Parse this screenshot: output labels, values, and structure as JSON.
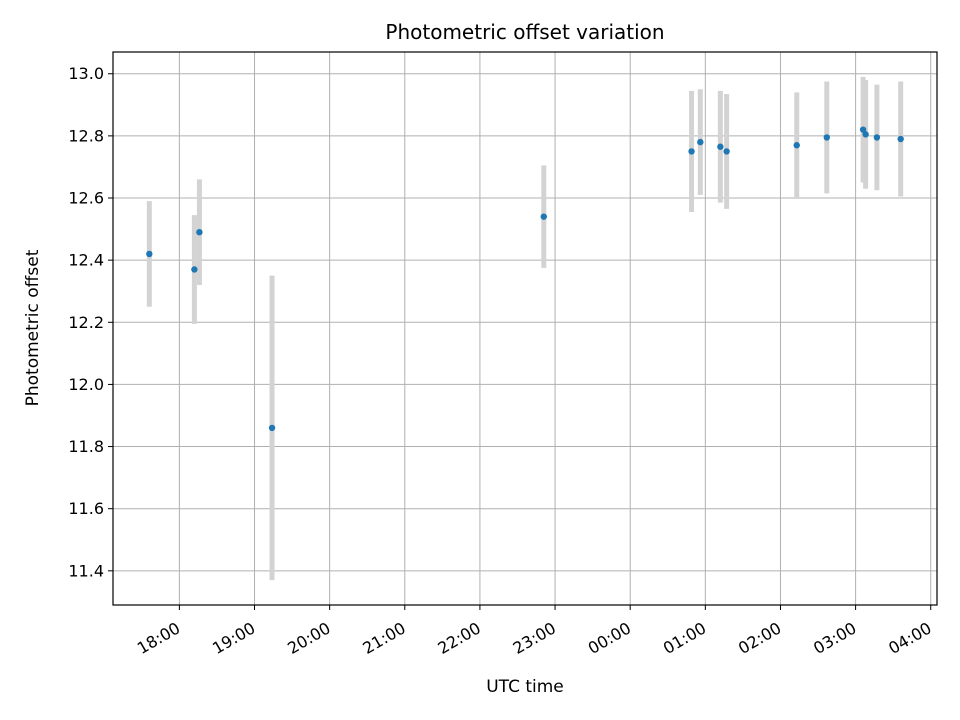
{
  "chart_data": {
    "type": "scatter",
    "title": "Photometric offset variation",
    "xlabel": "UTC time",
    "ylabel": "Photometric offset",
    "x_tick_labels": [
      "18:00",
      "19:00",
      "20:00",
      "21:00",
      "22:00",
      "23:00",
      "00:00",
      "01:00",
      "02:00",
      "03:00",
      "04:00"
    ],
    "y_ticks": [
      11.4,
      11.6,
      11.8,
      12.0,
      12.2,
      12.4,
      12.6,
      12.8,
      13.0
    ],
    "y_tick_labels": [
      "11.4",
      "11.6",
      "11.8",
      "12.0",
      "12.2",
      "12.4",
      "12.6",
      "12.8",
      "13.0"
    ],
    "xlim": [
      "17:07",
      "04:05"
    ],
    "ylim": [
      11.29,
      13.07
    ],
    "grid": true,
    "colors": {
      "point": "#1f77b4",
      "errorbar": "#d3d3d3",
      "grid": "#b0b0b0"
    },
    "points": [
      {
        "time": "17:36",
        "y": 12.42,
        "err": 0.17
      },
      {
        "time": "18:12",
        "y": 12.37,
        "err": 0.175
      },
      {
        "time": "18:16",
        "y": 12.49,
        "err": 0.17
      },
      {
        "time": "19:14",
        "y": 11.86,
        "err": 0.49
      },
      {
        "time": "22:51",
        "y": 12.54,
        "err": 0.165
      },
      {
        "time": "00:49",
        "y": 12.75,
        "err": 0.195
      },
      {
        "time": "00:56",
        "y": 12.78,
        "err": 0.17
      },
      {
        "time": "01:12",
        "y": 12.765,
        "err": 0.18
      },
      {
        "time": "01:17",
        "y": 12.75,
        "err": 0.185
      },
      {
        "time": "02:13",
        "y": 12.77,
        "err": 0.17
      },
      {
        "time": "02:37",
        "y": 12.795,
        "err": 0.18
      },
      {
        "time": "03:06",
        "y": 12.82,
        "err": 0.17
      },
      {
        "time": "03:08",
        "y": 12.805,
        "err": 0.175
      },
      {
        "time": "03:17",
        "y": 12.795,
        "err": 0.17
      },
      {
        "time": "03:36",
        "y": 12.79,
        "err": 0.185
      }
    ]
  }
}
